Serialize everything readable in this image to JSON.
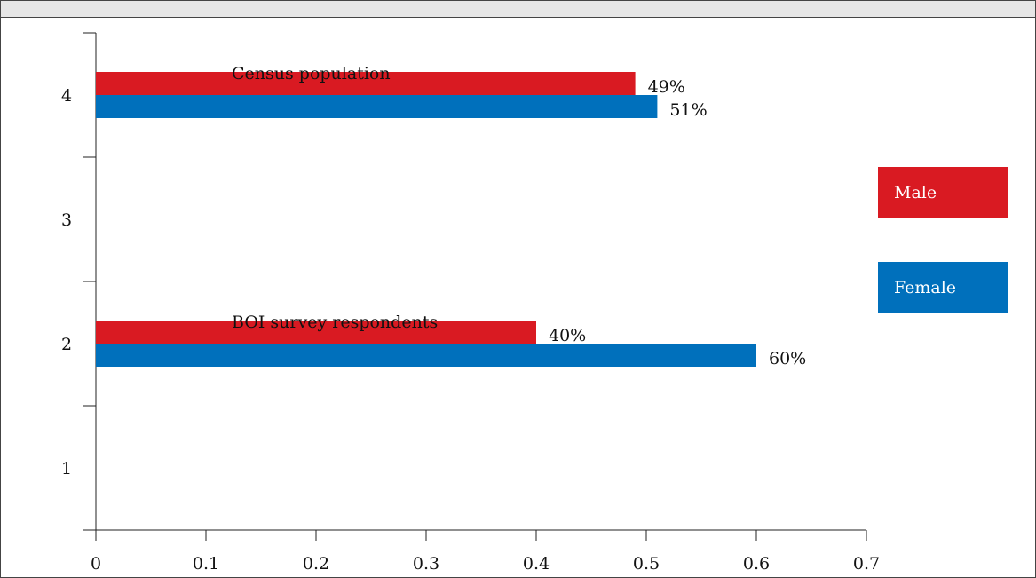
{
  "title": "",
  "chart_data": {
    "type": "bar",
    "orientation": "horizontal",
    "title": "",
    "xlabel": "",
    "ylabel": "",
    "xlim": [
      0,
      0.7
    ],
    "ylim": [
      0.5,
      4.5
    ],
    "x_ticks": [
      0,
      0.1,
      0.2,
      0.3,
      0.4,
      0.5,
      0.6,
      0.7
    ],
    "x_tick_labels": [
      "0",
      "0.1",
      "0.2",
      "0.3",
      "0.4",
      "0.5",
      "0.6",
      "0.7"
    ],
    "y_ticks": [
      1,
      2,
      3,
      4
    ],
    "y_tick_labels": [
      "1",
      "2",
      "3",
      "4"
    ],
    "grid": false,
    "legend_position": "right",
    "groups": [
      {
        "label": "Census population",
        "y": 4,
        "bars": [
          {
            "series": "Male",
            "value": 0.49,
            "label": "49%"
          },
          {
            "series": "Female",
            "value": 0.51,
            "label": "51%"
          }
        ]
      },
      {
        "label": "BOI survey respondents",
        "y": 2,
        "bars": [
          {
            "series": "Male",
            "value": 0.4,
            "label": "40%"
          },
          {
            "series": "Female",
            "value": 0.6,
            "label": "60%"
          }
        ]
      }
    ],
    "series": [
      {
        "name": "Male",
        "color": "#d91a22"
      },
      {
        "name": "Female",
        "color": "#0070bc"
      }
    ]
  }
}
